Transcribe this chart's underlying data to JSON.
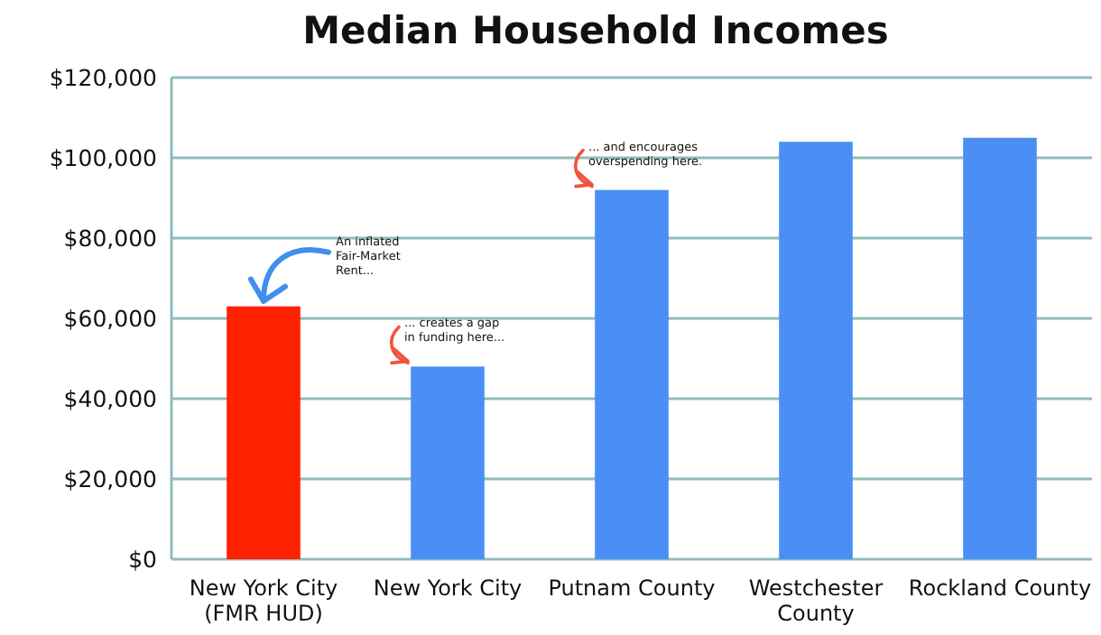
{
  "chart_data": {
    "type": "bar",
    "title": "Median Household Incomes",
    "categories": [
      "New York City (FMR HUD)",
      "New York City",
      "Putnam County",
      "Westchester County",
      "Rockland County"
    ],
    "values": [
      63000,
      48000,
      92000,
      104000,
      105000
    ],
    "colors": [
      "#ff2200",
      "#4a8ff5",
      "#4a8ff5",
      "#4a8ff5",
      "#4a8ff5"
    ],
    "ylim": [
      0,
      120000
    ],
    "yticks": [
      {
        "value": 0,
        "label": "$0"
      },
      {
        "value": 20000,
        "label": "$20,000"
      },
      {
        "value": 40000,
        "label": "$40,000"
      },
      {
        "value": 60000,
        "label": "$60,000"
      },
      {
        "value": 80000,
        "label": "$80,000"
      },
      {
        "value": 100000,
        "label": "$100,000"
      },
      {
        "value": 120000,
        "label": "$120,000"
      }
    ],
    "grid": "y",
    "annotations": [
      {
        "text": "An inflated Fair-Market Rent...",
        "x": "New York City (FMR HUD)",
        "y": 63000
      },
      {
        "text": "... creates a gap in funding here...",
        "x": "New York City",
        "y": 48000
      },
      {
        "text": "... and encourages overspending here.",
        "x": "Putnam County",
        "y": 92000
      }
    ]
  }
}
